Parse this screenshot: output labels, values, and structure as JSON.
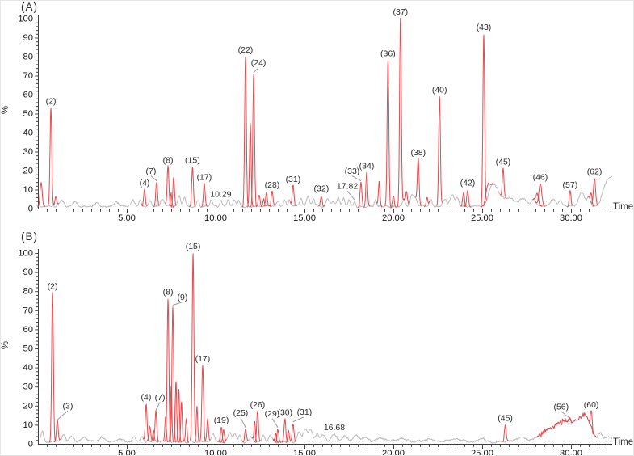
{
  "colors": {
    "peak_red": "#e8484b",
    "baseline_gray": "#bababa",
    "axis": "#3f3f3f",
    "tick_text": "#141414",
    "label_text": "#2a2a2a",
    "pointer_line": "#8f8f8f"
  },
  "chart_data": {
    "type": "line",
    "description": "Two stacked chromatogram traces (relative abundance % vs retention time) with numbered red peaks",
    "panels": [
      {
        "id": "A",
        "panel_label": "(A)",
        "ylabel": "%",
        "xlabel": "Time",
        "xlim": [
          0,
          32.5
        ],
        "ylim": [
          0,
          100
        ],
        "x_major_tick_values": [
          5,
          10,
          15,
          20,
          25,
          30
        ],
        "x_major_tick_labels": [
          "5.00",
          "10.00",
          "15.00",
          "20.00",
          "25.00",
          "30.00"
        ],
        "y_tick_values": [
          0,
          10,
          20,
          30,
          40,
          50,
          60,
          70,
          80,
          90,
          100
        ],
        "peaks": [
          {
            "label": "(2)",
            "t": 0.73,
            "h": 53
          },
          {
            "label": "(4)",
            "t": 6.0,
            "h": 10
          },
          {
            "label": "(7)",
            "t": 6.68,
            "h": 14,
            "dx": -7,
            "dy": -10
          },
          {
            "label": "(8)",
            "t": 7.32,
            "h": 22
          },
          {
            "label": "(15)",
            "t": 8.7,
            "h": 22
          },
          {
            "label": "(17)",
            "t": 9.36,
            "h": 13
          },
          {
            "label": "10.29",
            "t": 10.29,
            "h": 4,
            "w": 0.07,
            "gray": true
          },
          {
            "label": "(22)",
            "t": 11.68,
            "h": 80
          },
          {
            "label": "(24)",
            "t": 12.14,
            "h": 71,
            "dx": 6,
            "dy": -10
          },
          {
            "label": "(28)",
            "t": 13.18,
            "h": 9
          },
          {
            "label": "(31)",
            "t": 14.36,
            "h": 12
          },
          {
            "label": "(32)",
            "t": 15.95,
            "h": 7
          },
          {
            "label": "17.82",
            "t": 17.82,
            "h": 4,
            "w": 0.05,
            "gray": true,
            "dx": -9,
            "dy": -15
          },
          {
            "label": "(33)",
            "t": 18.18,
            "h": 14,
            "dx": -11,
            "dy": -10
          },
          {
            "label": "(34)",
            "t": 18.5,
            "h": 19
          },
          {
            "label": "(36)",
            "t": 19.7,
            "h": 78
          },
          {
            "label": "(37)",
            "t": 20.4,
            "h": 100
          },
          {
            "label": "(38)",
            "t": 21.4,
            "h": 26
          },
          {
            "label": "(40)",
            "t": 22.6,
            "h": 59
          },
          {
            "label": "(42)",
            "t": 24.18,
            "h": 10
          },
          {
            "label": "(43)",
            "t": 25.09,
            "h": 92
          },
          {
            "label": "(45)",
            "t": 26.18,
            "h": 21
          },
          {
            "label": "(46)",
            "t": 28.27,
            "h": 13,
            "w": 0.08
          },
          {
            "label": "(57)",
            "t": 29.95,
            "h": 9
          },
          {
            "label": "(62)",
            "t": 31.32,
            "h": 16,
            "w": 0.06
          }
        ],
        "red_extra": [
          [
            0.18,
            14,
            0.06
          ],
          [
            1.0,
            7,
            0.05
          ],
          [
            7.5,
            8,
            0.04
          ],
          [
            7.64,
            17,
            0.045
          ],
          [
            11.95,
            45,
            0.045
          ],
          [
            12.45,
            7,
            0.05
          ],
          [
            12.7,
            5,
            0.04
          ],
          [
            12.86,
            8,
            0.045
          ],
          [
            19.2,
            14,
            0.045
          ],
          [
            20.0,
            7,
            0.045
          ],
          [
            20.75,
            9,
            0.05
          ],
          [
            21.9,
            6,
            0.045
          ],
          [
            23.95,
            8,
            0.05
          ],
          [
            25.3,
            12,
            0.1
          ],
          [
            28.1,
            8,
            0.07
          ],
          [
            31.14,
            8,
            0.05
          ]
        ],
        "gray_bumps": [
          [
            1.3,
            3,
            0.15
          ],
          [
            2.1,
            2.5,
            0.12
          ],
          [
            3.3,
            2,
            0.12
          ],
          [
            4.4,
            2.5,
            0.1
          ],
          [
            5.35,
            3,
            0.08
          ],
          [
            5.75,
            3.5,
            0.07
          ],
          [
            6.3,
            3,
            0.07
          ],
          [
            7.0,
            4,
            0.1
          ],
          [
            7.95,
            6,
            0.08
          ],
          [
            8.25,
            5,
            0.07
          ],
          [
            9.0,
            3,
            0.06
          ],
          [
            9.75,
            3,
            0.07
          ],
          [
            10.7,
            3.5,
            0.07
          ],
          [
            11.05,
            4,
            0.07
          ],
          [
            11.3,
            3,
            0.06
          ],
          [
            13.5,
            3,
            0.07
          ],
          [
            13.9,
            3.5,
            0.07
          ],
          [
            14.15,
            3,
            0.06
          ],
          [
            14.8,
            4,
            0.08
          ],
          [
            15.2,
            5,
            0.09
          ],
          [
            15.5,
            4,
            0.07
          ],
          [
            16.3,
            4,
            0.1
          ],
          [
            16.6,
            3,
            0.08
          ],
          [
            16.9,
            5,
            0.08
          ],
          [
            17.2,
            4,
            0.07
          ],
          [
            17.5,
            3.5,
            0.07
          ],
          [
            19.0,
            3,
            0.06
          ],
          [
            20.6,
            4,
            0.08
          ],
          [
            21.05,
            6,
            0.09
          ],
          [
            21.25,
            4,
            0.07
          ],
          [
            22.1,
            4,
            0.08
          ],
          [
            22.9,
            4,
            0.1
          ],
          [
            23.3,
            6,
            0.12
          ],
          [
            23.6,
            4,
            0.08
          ],
          [
            25.55,
            9,
            0.2
          ],
          [
            25.9,
            6,
            0.25
          ],
          [
            26.6,
            4,
            0.3
          ],
          [
            27.3,
            3.5,
            0.2
          ],
          [
            27.9,
            4,
            0.12
          ],
          [
            29.0,
            4,
            0.15
          ],
          [
            29.4,
            3,
            0.1
          ],
          [
            30.6,
            8,
            0.15
          ],
          [
            31.0,
            5,
            0.1
          ],
          [
            31.9,
            6,
            0.2
          ],
          [
            32.35,
            15,
            0.3
          ]
        ],
        "red_segments": [],
        "noisy_ranges": []
      },
      {
        "id": "B",
        "panel_label": "(B)",
        "ylabel": "%",
        "xlabel": "Time",
        "xlim": [
          0,
          32.5
        ],
        "ylim": [
          0,
          100
        ],
        "x_major_tick_values": [
          5,
          10,
          15,
          20,
          25,
          30
        ],
        "x_major_tick_labels": [
          "5.00",
          "10.00",
          "15.00",
          "20.00",
          "25.00",
          "30.00"
        ],
        "y_tick_values": [
          0,
          10,
          20,
          30,
          40,
          50,
          60,
          70,
          80,
          90,
          100
        ],
        "peaks": [
          {
            "label": "(2)",
            "t": 0.82,
            "h": 79
          },
          {
            "label": "(3)",
            "t": 1.09,
            "h": 12,
            "dx": 13,
            "dy": -15
          },
          {
            "label": "(4)",
            "t": 6.09,
            "h": 21
          },
          {
            "label": "(7)",
            "t": 6.64,
            "h": 17,
            "dx": 5,
            "dy": -14
          },
          {
            "label": "(8)",
            "t": 7.32,
            "h": 76
          },
          {
            "label": "(9)",
            "t": 7.59,
            "h": 72,
            "dx": 12,
            "dy": -8
          },
          {
            "label": "(15)",
            "t": 8.73,
            "h": 100
          },
          {
            "label": "(17)",
            "t": 9.27,
            "h": 41
          },
          {
            "label": "(19)",
            "t": 10.32,
            "h": 9
          },
          {
            "label": "(25)",
            "t": 11.68,
            "h": 8,
            "dx": -6,
            "dy": -16
          },
          {
            "label": "(26)",
            "t": 12.36,
            "h": 17
          },
          {
            "label": "(29)",
            "t": 13.5,
            "h": 8,
            "dx": -7,
            "dy": -15
          },
          {
            "label": "(30)",
            "t": 13.9,
            "h": 13
          },
          {
            "label": "(31)",
            "t": 14.36,
            "h": 11,
            "dx": 14,
            "dy": -10
          },
          {
            "label": "16.68",
            "t": 16.68,
            "h": 5,
            "w": 0.15,
            "gray": true
          },
          {
            "label": "(45)",
            "t": 26.3,
            "h": 10
          },
          {
            "label": "(56)",
            "t": 29.9,
            "h": 13,
            "dx": -10,
            "dy": -12
          },
          {
            "label": "(60)",
            "t": 31.14,
            "h": 17,
            "w": 0.05
          }
        ],
        "red_extra": [
          [
            6.3,
            9,
            0.05
          ],
          [
            6.5,
            7,
            0.04
          ],
          [
            7.18,
            14,
            0.04
          ],
          [
            7.5,
            30,
            0.04
          ],
          [
            7.77,
            33,
            0.04
          ],
          [
            7.93,
            29,
            0.04
          ],
          [
            8.08,
            22,
            0.04
          ],
          [
            8.35,
            14,
            0.04
          ],
          [
            8.95,
            20,
            0.04
          ],
          [
            9.55,
            13,
            0.045
          ],
          [
            10.45,
            8,
            0.045
          ],
          [
            12.2,
            12,
            0.04
          ],
          [
            13.38,
            6,
            0.04
          ],
          [
            14.1,
            7,
            0.04
          ]
        ],
        "gray_bumps": [
          [
            0.25,
            5,
            0.08
          ],
          [
            1.45,
            4,
            0.1
          ],
          [
            1.9,
            3,
            0.12
          ],
          [
            2.6,
            2,
            0.15
          ],
          [
            3.6,
            2,
            0.15
          ],
          [
            4.6,
            2,
            0.12
          ],
          [
            5.4,
            2.5,
            0.1
          ],
          [
            5.85,
            3,
            0.08
          ],
          [
            9.85,
            4,
            0.08
          ],
          [
            10.8,
            5,
            0.1
          ],
          [
            11.1,
            4,
            0.08
          ],
          [
            11.35,
            3,
            0.07
          ],
          [
            12.0,
            3,
            0.08
          ],
          [
            12.7,
            3,
            0.08
          ],
          [
            13.1,
            3,
            0.1
          ],
          [
            14.7,
            5,
            0.1
          ],
          [
            15.05,
            6,
            0.12
          ],
          [
            15.35,
            6,
            0.1
          ],
          [
            15.7,
            4,
            0.1
          ],
          [
            16.05,
            4,
            0.12
          ],
          [
            17.3,
            3,
            0.15
          ],
          [
            17.9,
            3.5,
            0.15
          ],
          [
            18.4,
            2.5,
            0.15
          ],
          [
            19.3,
            2,
            0.2
          ],
          [
            20.5,
            1.5,
            0.3
          ],
          [
            22.0,
            1.5,
            0.3
          ],
          [
            23.5,
            1.5,
            0.3
          ],
          [
            25.0,
            1.5,
            0.2
          ],
          [
            27.2,
            2.5,
            0.25
          ],
          [
            28.5,
            3.5,
            0.4
          ],
          [
            29.3,
            7,
            0.5
          ],
          [
            30.15,
            9,
            0.5
          ],
          [
            30.85,
            10,
            0.3
          ],
          [
            31.65,
            4,
            0.12
          ],
          [
            32.1,
            2.5,
            0.2
          ]
        ],
        "red_segments": [
          [
            28.05,
            31.42
          ]
        ],
        "noisy_ranges": [
          [
            28.2,
            31.3,
            2.0
          ]
        ]
      }
    ]
  }
}
